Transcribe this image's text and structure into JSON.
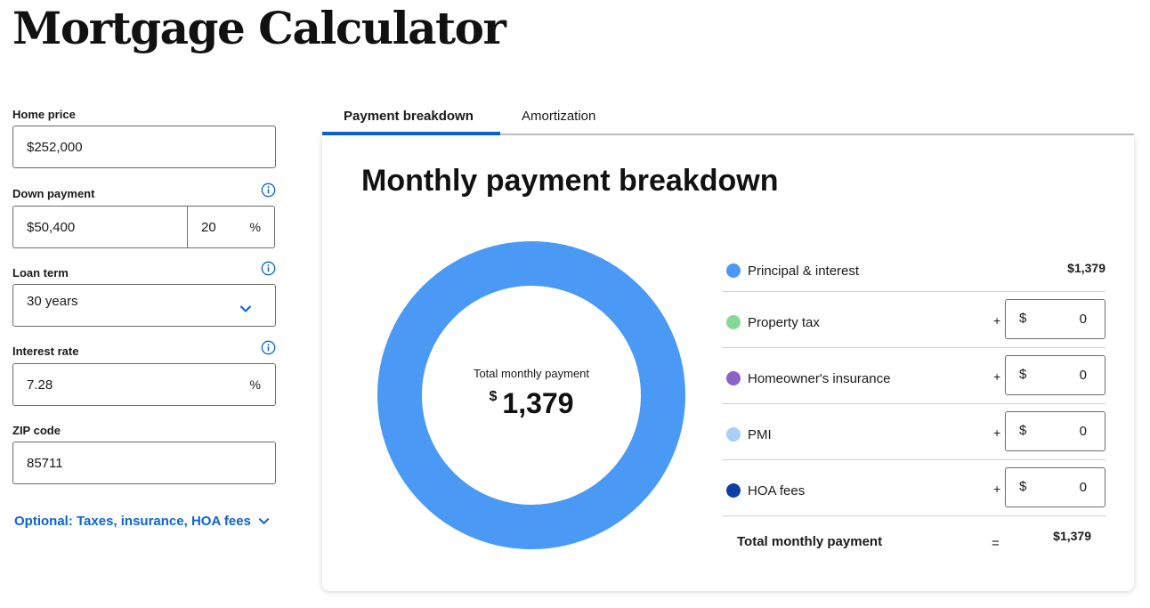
{
  "page": {
    "title": "Mortgage Calculator"
  },
  "form": {
    "home_price": {
      "label": "Home price",
      "value": "$252,000"
    },
    "down_payment": {
      "label": "Down payment",
      "amount": "$50,400",
      "percent": "20",
      "percent_symbol": "%"
    },
    "loan_term": {
      "label": "Loan term",
      "value": "30 years"
    },
    "interest_rate": {
      "label": "Interest rate",
      "value": "7.28",
      "suffix": "%"
    },
    "zip_code": {
      "label": "ZIP code",
      "value": "85711"
    },
    "optional_link": "Optional: Taxes, insurance, HOA fees"
  },
  "tabs": [
    {
      "label": "Payment breakdown",
      "active": true
    },
    {
      "label": "Amortization",
      "active": false
    }
  ],
  "breakdown": {
    "title": "Monthly payment breakdown",
    "donut": {
      "label": "Total monthly payment",
      "currency": "$",
      "amount": "1,379"
    },
    "rows": [
      {
        "label": "Principal & interest",
        "value": "$1,379",
        "color": "#4a9af5"
      },
      {
        "label": "Property tax",
        "plus": "+",
        "currency": "$",
        "value": "0",
        "color": "#86d995"
      },
      {
        "label": "Homeowner's insurance",
        "plus": "+",
        "currency": "$",
        "value": "0",
        "color": "#8b63c9"
      },
      {
        "label": "PMI",
        "plus": "+",
        "currency": "$",
        "value": "0",
        "color": "#a8d1f5"
      },
      {
        "label": "HOA fees",
        "plus": "+",
        "currency": "$",
        "value": "0",
        "color": "#0d3fa6"
      }
    ],
    "total": {
      "label": "Total monthly payment",
      "equals": "=",
      "value": "$1,379"
    }
  },
  "colors": {
    "accent": "#0b63d6",
    "donut": "#4a9af5"
  },
  "icons": [
    "info-icon",
    "chevron-down-icon"
  ]
}
